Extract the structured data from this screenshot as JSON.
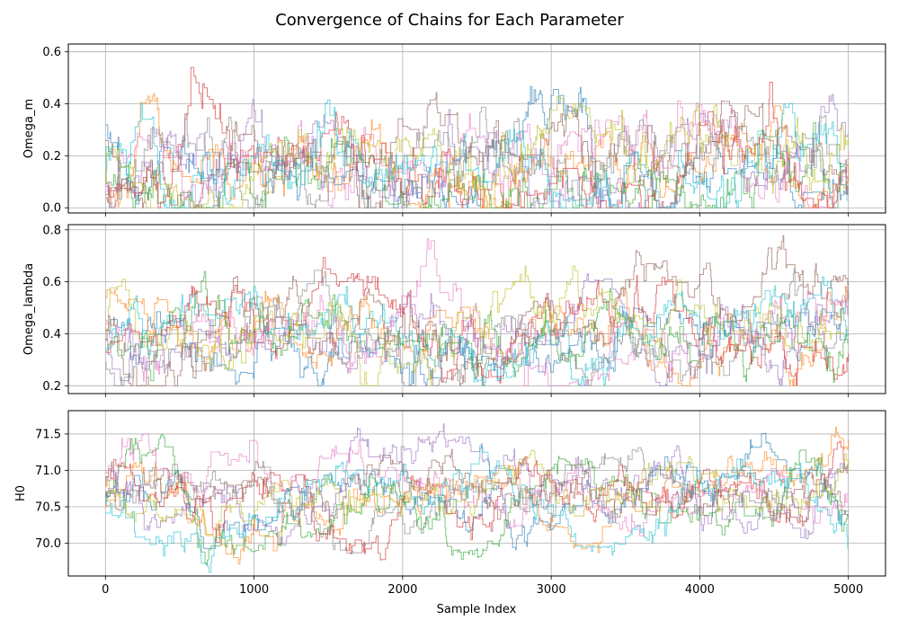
{
  "chart_data": {
    "type": "line",
    "title": "Convergence of Chains for Each Parameter",
    "xlabel": "Sample Index",
    "xlim": [
      -250,
      5250
    ],
    "xticks": [
      0,
      1000,
      2000,
      3000,
      4000,
      5000
    ],
    "n_samples": 5000,
    "grid": true,
    "series_colors": [
      "#1f77b4",
      "#ff7f0e",
      "#2ca02c",
      "#d62728",
      "#9467bd",
      "#8c564b",
      "#e377c2",
      "#7f7f7f",
      "#bcbd22",
      "#17becf"
    ],
    "series_count": 10,
    "panels": [
      {
        "ylabel": "Omega_m",
        "ylim": [
          -0.02,
          0.63
        ],
        "yticks": [
          0.0,
          0.2,
          0.4,
          0.6
        ],
        "yticklabels": [
          "0.0",
          "0.2",
          "0.4",
          "0.6"
        ],
        "range": [
          0.0,
          0.6
        ],
        "typical_center": 0.12,
        "typical_spread": 0.12
      },
      {
        "ylabel": "Omega_lambda",
        "ylim": [
          0.17,
          0.82
        ],
        "yticks": [
          0.2,
          0.4,
          0.6,
          0.8
        ],
        "yticklabels": [
          "0.2",
          "0.4",
          "0.6",
          "0.8"
        ],
        "range": [
          0.2,
          0.8
        ],
        "typical_center": 0.4,
        "typical_spread": 0.1
      },
      {
        "ylabel": "H0",
        "ylim": [
          69.55,
          71.82
        ],
        "yticks": [
          70.0,
          70.5,
          71.0,
          71.5
        ],
        "yticklabels": [
          "70.0",
          "70.5",
          "71.0",
          "71.5"
        ],
        "range": [
          69.6,
          71.7
        ],
        "typical_center": 70.68,
        "typical_spread": 0.28
      }
    ]
  }
}
